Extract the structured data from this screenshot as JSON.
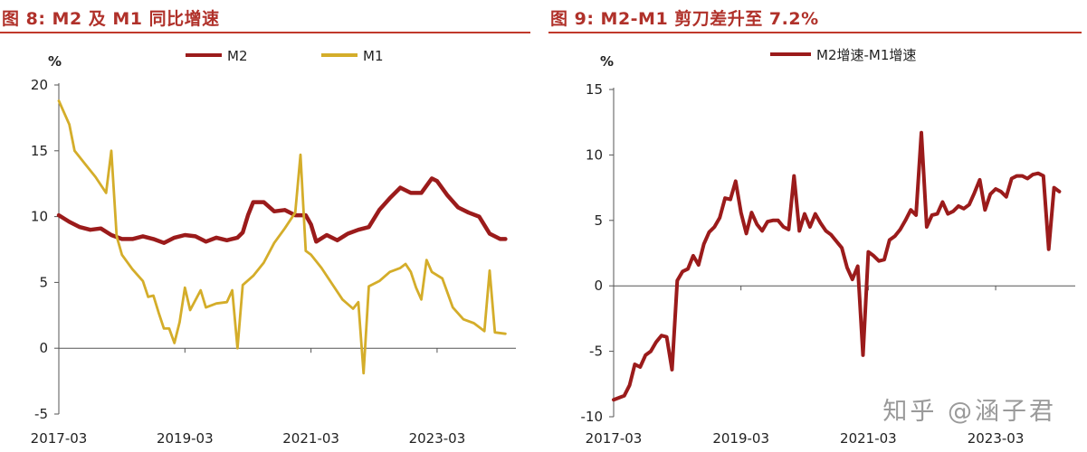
{
  "colors": {
    "m2": "#9b1b1b",
    "m1": "#d4ad2a",
    "spread": "#9b1b1b",
    "title": "#b0312a"
  },
  "watermark": "知乎 @涵子君",
  "chart_data": [
    {
      "type": "line",
      "title": "图 8:  M2 及 M1 同比增速",
      "ylabel": "%",
      "ylim": [
        -5,
        20
      ],
      "yticks": [
        -5,
        0,
        5,
        10,
        15,
        20
      ],
      "xlim": [
        "2017-03",
        "2024-06"
      ],
      "xticks": [
        "2017-03",
        "2019-03",
        "2021-03",
        "2023-03"
      ],
      "grid": false,
      "legend_position": "top",
      "series": [
        {
          "name": "M2",
          "points": [
            [
              "2017-03",
              10.1
            ],
            [
              "2017-05",
              9.6
            ],
            [
              "2017-07",
              9.2
            ],
            [
              "2017-09",
              9.0
            ],
            [
              "2017-11",
              9.1
            ],
            [
              "2018-01",
              8.6
            ],
            [
              "2018-03",
              8.3
            ],
            [
              "2018-05",
              8.3
            ],
            [
              "2018-07",
              8.5
            ],
            [
              "2018-09",
              8.3
            ],
            [
              "2018-11",
              8.0
            ],
            [
              "2019-01",
              8.4
            ],
            [
              "2019-03",
              8.6
            ],
            [
              "2019-05",
              8.5
            ],
            [
              "2019-07",
              8.1
            ],
            [
              "2019-09",
              8.4
            ],
            [
              "2019-11",
              8.2
            ],
            [
              "2020-01",
              8.4
            ],
            [
              "2020-02",
              8.8
            ],
            [
              "2020-03",
              10.1
            ],
            [
              "2020-04",
              11.1
            ],
            [
              "2020-06",
              11.1
            ],
            [
              "2020-08",
              10.4
            ],
            [
              "2020-10",
              10.5
            ],
            [
              "2020-12",
              10.1
            ],
            [
              "2021-02",
              10.1
            ],
            [
              "2021-03",
              9.4
            ],
            [
              "2021-04",
              8.1
            ],
            [
              "2021-06",
              8.6
            ],
            [
              "2021-08",
              8.2
            ],
            [
              "2021-10",
              8.7
            ],
            [
              "2021-12",
              9.0
            ],
            [
              "2022-02",
              9.2
            ],
            [
              "2022-04",
              10.5
            ],
            [
              "2022-06",
              11.4
            ],
            [
              "2022-08",
              12.2
            ],
            [
              "2022-10",
              11.8
            ],
            [
              "2022-12",
              11.8
            ],
            [
              "2023-02",
              12.9
            ],
            [
              "2023-03",
              12.7
            ],
            [
              "2023-05",
              11.6
            ],
            [
              "2023-07",
              10.7
            ],
            [
              "2023-09",
              10.3
            ],
            [
              "2023-11",
              10.0
            ],
            [
              "2024-01",
              8.7
            ],
            [
              "2024-03",
              8.3
            ],
            [
              "2024-04",
              8.3
            ]
          ]
        },
        {
          "name": "M1",
          "points": [
            [
              "2017-03",
              18.8
            ],
            [
              "2017-05",
              17.0
            ],
            [
              "2017-06",
              15.0
            ],
            [
              "2017-08",
              14.0
            ],
            [
              "2017-10",
              13.0
            ],
            [
              "2017-12",
              11.8
            ],
            [
              "2018-01",
              15.0
            ],
            [
              "2018-02",
              8.5
            ],
            [
              "2018-03",
              7.1
            ],
            [
              "2018-05",
              6.0
            ],
            [
              "2018-07",
              5.1
            ],
            [
              "2018-08",
              3.9
            ],
            [
              "2018-09",
              4.0
            ],
            [
              "2018-10",
              2.7
            ],
            [
              "2018-11",
              1.5
            ],
            [
              "2018-12",
              1.5
            ],
            [
              "2019-01",
              0.4
            ],
            [
              "2019-02",
              2.0
            ],
            [
              "2019-03",
              4.6
            ],
            [
              "2019-04",
              2.9
            ],
            [
              "2019-06",
              4.4
            ],
            [
              "2019-07",
              3.1
            ],
            [
              "2019-09",
              3.4
            ],
            [
              "2019-11",
              3.5
            ],
            [
              "2019-12",
              4.4
            ],
            [
              "2020-01",
              0.0
            ],
            [
              "2020-02",
              4.8
            ],
            [
              "2020-04",
              5.5
            ],
            [
              "2020-06",
              6.5
            ],
            [
              "2020-08",
              8.0
            ],
            [
              "2020-10",
              9.1
            ],
            [
              "2020-12",
              10.3
            ],
            [
              "2021-01",
              14.7
            ],
            [
              "2021-02",
              7.4
            ],
            [
              "2021-03",
              7.1
            ],
            [
              "2021-05",
              6.1
            ],
            [
              "2021-07",
              4.9
            ],
            [
              "2021-09",
              3.7
            ],
            [
              "2021-11",
              3.0
            ],
            [
              "2021-12",
              3.5
            ],
            [
              "2022-01",
              -1.9
            ],
            [
              "2022-02",
              4.7
            ],
            [
              "2022-04",
              5.1
            ],
            [
              "2022-06",
              5.8
            ],
            [
              "2022-08",
              6.1
            ],
            [
              "2022-09",
              6.4
            ],
            [
              "2022-10",
              5.8
            ],
            [
              "2022-11",
              4.6
            ],
            [
              "2022-12",
              3.7
            ],
            [
              "2023-01",
              6.7
            ],
            [
              "2023-02",
              5.8
            ],
            [
              "2023-04",
              5.3
            ],
            [
              "2023-06",
              3.1
            ],
            [
              "2023-08",
              2.2
            ],
            [
              "2023-10",
              1.9
            ],
            [
              "2023-12",
              1.3
            ],
            [
              "2024-01",
              5.9
            ],
            [
              "2024-02",
              1.2
            ],
            [
              "2024-04",
              1.1
            ]
          ]
        }
      ]
    },
    {
      "type": "line",
      "title": "图 9:  M2-M1 剪刀差升至 7.2%",
      "ylabel": "%",
      "ylim": [
        -10,
        15
      ],
      "yticks": [
        -10,
        -5,
        0,
        5,
        10,
        15
      ],
      "xlim": [
        "2017-03",
        "2024-06"
      ],
      "xticks": [
        "2017-03",
        "2019-03",
        "2021-03",
        "2023-03"
      ],
      "grid": false,
      "legend_position": "top",
      "series": [
        {
          "name": "M2增速-M1增速",
          "points": [
            [
              "2017-03",
              -8.7
            ],
            [
              "2017-05",
              -8.4
            ],
            [
              "2017-06",
              -7.6
            ],
            [
              "2017-07",
              -6.0
            ],
            [
              "2017-08",
              -6.2
            ],
            [
              "2017-09",
              -5.3
            ],
            [
              "2017-10",
              -5.0
            ],
            [
              "2017-11",
              -4.3
            ],
            [
              "2017-12",
              -3.8
            ],
            [
              "2018-01",
              -3.9
            ],
            [
              "2018-02",
              -6.4
            ],
            [
              "2018-03",
              0.4
            ],
            [
              "2018-04",
              1.1
            ],
            [
              "2018-05",
              1.3
            ],
            [
              "2018-06",
              2.3
            ],
            [
              "2018-07",
              1.6
            ],
            [
              "2018-08",
              3.2
            ],
            [
              "2018-09",
              4.1
            ],
            [
              "2018-10",
              4.5
            ],
            [
              "2018-11",
              5.2
            ],
            [
              "2018-12",
              6.7
            ],
            [
              "2019-01",
              6.6
            ],
            [
              "2019-02",
              8.0
            ],
            [
              "2019-03",
              5.6
            ],
            [
              "2019-04",
              4.0
            ],
            [
              "2019-05",
              5.6
            ],
            [
              "2019-06",
              4.7
            ],
            [
              "2019-07",
              4.2
            ],
            [
              "2019-08",
              4.9
            ],
            [
              "2019-09",
              5.0
            ],
            [
              "2019-10",
              5.0
            ],
            [
              "2019-11",
              4.5
            ],
            [
              "2019-12",
              4.3
            ],
            [
              "2020-01",
              8.4
            ],
            [
              "2020-02",
              4.2
            ],
            [
              "2020-03",
              5.5
            ],
            [
              "2020-04",
              4.5
            ],
            [
              "2020-05",
              5.5
            ],
            [
              "2020-06",
              4.8
            ],
            [
              "2020-07",
              4.2
            ],
            [
              "2020-08",
              3.9
            ],
            [
              "2020-09",
              3.4
            ],
            [
              "2020-10",
              2.9
            ],
            [
              "2020-11",
              1.4
            ],
            [
              "2020-12",
              0.5
            ],
            [
              "2021-01",
              1.5
            ],
            [
              "2021-02",
              -5.3
            ],
            [
              "2021-03",
              2.6
            ],
            [
              "2021-04",
              2.3
            ],
            [
              "2021-05",
              1.9
            ],
            [
              "2021-06",
              2.0
            ],
            [
              "2021-07",
              3.5
            ],
            [
              "2021-08",
              3.8
            ],
            [
              "2021-09",
              4.3
            ],
            [
              "2021-10",
              5.0
            ],
            [
              "2021-11",
              5.8
            ],
            [
              "2021-12",
              5.4
            ],
            [
              "2022-01",
              11.7
            ],
            [
              "2022-02",
              4.5
            ],
            [
              "2022-03",
              5.4
            ],
            [
              "2022-04",
              5.5
            ],
            [
              "2022-05",
              6.4
            ],
            [
              "2022-06",
              5.5
            ],
            [
              "2022-07",
              5.7
            ],
            [
              "2022-08",
              6.1
            ],
            [
              "2022-09",
              5.9
            ],
            [
              "2022-10",
              6.2
            ],
            [
              "2022-11",
              7.1
            ],
            [
              "2022-12",
              8.1
            ],
            [
              "2023-01",
              5.8
            ],
            [
              "2023-02",
              7.0
            ],
            [
              "2023-03",
              7.4
            ],
            [
              "2023-04",
              7.2
            ],
            [
              "2023-05",
              6.8
            ],
            [
              "2023-06",
              8.2
            ],
            [
              "2023-07",
              8.4
            ],
            [
              "2023-08",
              8.4
            ],
            [
              "2023-09",
              8.2
            ],
            [
              "2023-10",
              8.5
            ],
            [
              "2023-11",
              8.6
            ],
            [
              "2023-12",
              8.4
            ],
            [
              "2024-01",
              2.8
            ],
            [
              "2024-02",
              7.5
            ],
            [
              "2024-03",
              7.2
            ]
          ]
        }
      ]
    }
  ]
}
